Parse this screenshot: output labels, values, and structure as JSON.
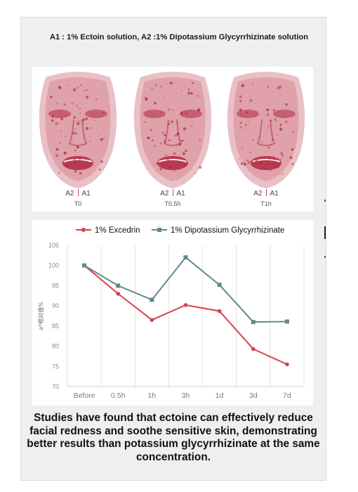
{
  "caption": "A1 : 1% Ectoin solution, A2 :1% Dipotassium Glycyrrhizinate solution",
  "panels": [
    {
      "left": "A2",
      "right": "A1",
      "time": "T0"
    },
    {
      "left": "A2",
      "right": "A1",
      "time": "T0.5h"
    },
    {
      "left": "A2",
      "right": "A1",
      "time": "T1h"
    }
  ],
  "colors": {
    "series1": "#d8414c",
    "series2": "#5f8a8c",
    "face": "#b0283f",
    "grid": "#e2e2e2"
  },
  "chart_data": {
    "type": "line",
    "x": [
      "Before",
      "0.5h",
      "1h",
      "3h",
      "1d",
      "3d",
      "7d"
    ],
    "ylabel": "a*相对值%",
    "ylim": [
      70,
      105
    ],
    "yticks": [
      70,
      75,
      80,
      85,
      90,
      95,
      100,
      105
    ],
    "grid": "vertical",
    "legend": "top",
    "series": [
      {
        "name": "1% Excedrin",
        "color": "#d8414c",
        "marker": "circle",
        "values": [
          100,
          93,
          86.5,
          90.2,
          88.7,
          79.3,
          75.5
        ]
      },
      {
        "name": "1% Dipotassium Glycyrrhizinate",
        "color": "#5f8a8c",
        "marker": "square",
        "values": [
          100,
          95,
          91.5,
          102,
          95.2,
          86,
          86.1
        ]
      }
    ]
  },
  "description": "Studies have found that ectoine can effectively reduce facial redness and soothe sensitive skin, demonstrating better results than potassium glycyrrhizinate at the same concentration."
}
